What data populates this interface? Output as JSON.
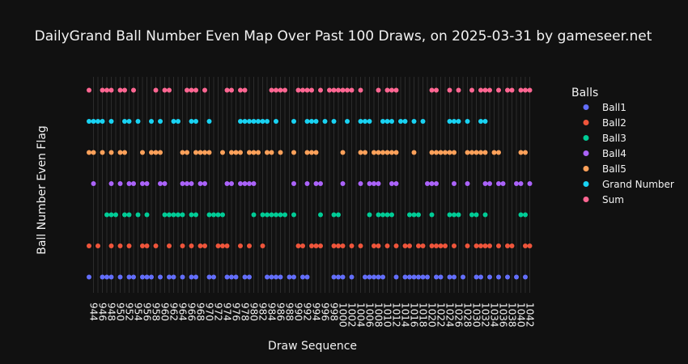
{
  "chart_data": {
    "type": "scatter",
    "title": "DailyGrand Ball Number Even Map Over Past 100 Draws, on 2025-03-31 by gameseer.net",
    "xlabel": "Draw Sequence",
    "ylabel": "Ball Number Even Flag",
    "xlim": [
      943,
      1043
    ],
    "x_ticks": [
      944,
      946,
      948,
      950,
      952,
      954,
      956,
      958,
      960,
      962,
      964,
      966,
      968,
      970,
      972,
      974,
      976,
      978,
      980,
      982,
      984,
      986,
      988,
      990,
      992,
      994,
      996,
      998,
      1000,
      1002,
      1004,
      1006,
      1008,
      1010,
      1012,
      1014,
      1016,
      1018,
      1020,
      1022,
      1024,
      1026,
      1028,
      1030,
      1032,
      1034,
      1036,
      1038,
      1040,
      1042
    ],
    "grid": "vertical",
    "legend_title": "Balls",
    "legend_position": "right",
    "series": [
      {
        "name": "Ball1",
        "color": "#636efa",
        "x": [
          943,
          946,
          947,
          948,
          950,
          952,
          953,
          955,
          956,
          957,
          959,
          961,
          962,
          964,
          966,
          967,
          970,
          971,
          974,
          975,
          976,
          978,
          979,
          983,
          984,
          985,
          986,
          988,
          989,
          991,
          992,
          998,
          999,
          1000,
          1002,
          1005,
          1006,
          1007,
          1008,
          1009,
          1012,
          1014,
          1015,
          1016,
          1017,
          1018,
          1019,
          1021,
          1022,
          1024,
          1025,
          1027,
          1030,
          1031,
          1033,
          1035,
          1037,
          1039,
          1041
        ]
      },
      {
        "name": "Ball2",
        "color": "#ef553b",
        "x": [
          943,
          945,
          948,
          950,
          952,
          955,
          956,
          958,
          961,
          964,
          966,
          968,
          969,
          972,
          973,
          974,
          977,
          979,
          982,
          990,
          991,
          993,
          994,
          995,
          998,
          999,
          1000,
          1002,
          1004,
          1007,
          1008,
          1010,
          1012,
          1014,
          1015,
          1017,
          1018,
          1020,
          1021,
          1022,
          1023,
          1025,
          1028,
          1030,
          1031,
          1032,
          1033,
          1035,
          1037,
          1038,
          1041,
          1042
        ]
      },
      {
        "name": "Ball3",
        "color": "#00cc96",
        "x": [
          947,
          948,
          949,
          951,
          952,
          954,
          956,
          960,
          961,
          962,
          963,
          964,
          966,
          967,
          970,
          971,
          972,
          973,
          980,
          982,
          983,
          984,
          985,
          986,
          987,
          989,
          995,
          998,
          999,
          1006,
          1008,
          1009,
          1010,
          1011,
          1015,
          1016,
          1017,
          1020,
          1024,
          1025,
          1026,
          1029,
          1030,
          1032,
          1040,
          1041
        ]
      },
      {
        "name": "Ball4",
        "color": "#ab63fa",
        "x": [
          944,
          948,
          950,
          952,
          953,
          955,
          956,
          959,
          960,
          964,
          965,
          966,
          968,
          969,
          974,
          975,
          977,
          978,
          979,
          980,
          989,
          992,
          994,
          995,
          1000,
          1004,
          1006,
          1007,
          1008,
          1011,
          1012,
          1019,
          1020,
          1021,
          1025,
          1028,
          1032,
          1033,
          1035,
          1036,
          1039,
          1040,
          1042
        ]
      },
      {
        "name": "Ball5",
        "color": "#ffa15a",
        "x": [
          943,
          944,
          946,
          948,
          950,
          951,
          955,
          957,
          958,
          959,
          964,
          965,
          967,
          968,
          969,
          970,
          973,
          975,
          976,
          977,
          979,
          980,
          981,
          983,
          984,
          986,
          989,
          992,
          993,
          994,
          1000,
          1004,
          1005,
          1007,
          1008,
          1009,
          1010,
          1011,
          1012,
          1016,
          1020,
          1021,
          1022,
          1023,
          1024,
          1025,
          1028,
          1029,
          1030,
          1031,
          1032,
          1034,
          1035,
          1040,
          1041
        ]
      },
      {
        "name": "Grand Number",
        "color": "#19d3f3",
        "x": [
          943,
          944,
          945,
          946,
          948,
          951,
          952,
          954,
          957,
          959,
          962,
          963,
          966,
          967,
          970,
          977,
          978,
          979,
          980,
          981,
          982,
          983,
          985,
          989,
          992,
          993,
          994,
          996,
          998,
          1001,
          1004,
          1005,
          1006,
          1009,
          1010,
          1011,
          1013,
          1014,
          1016,
          1018,
          1024,
          1025,
          1026,
          1028,
          1031,
          1032
        ]
      },
      {
        "name": "Sum",
        "color": "#ff6692",
        "x": [
          943,
          946,
          947,
          948,
          950,
          951,
          953,
          958,
          960,
          961,
          965,
          966,
          967,
          969,
          974,
          975,
          977,
          978,
          984,
          985,
          986,
          987,
          990,
          991,
          992,
          993,
          995,
          997,
          998,
          999,
          1000,
          1001,
          1002,
          1004,
          1008,
          1010,
          1011,
          1012,
          1020,
          1021,
          1024,
          1026,
          1029,
          1031,
          1032,
          1033,
          1035,
          1037,
          1038,
          1040,
          1041,
          1042
        ]
      }
    ]
  }
}
